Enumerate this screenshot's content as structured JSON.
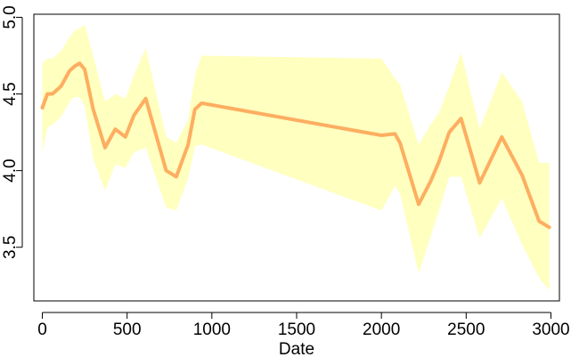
{
  "chart_data": {
    "type": "line",
    "title": "",
    "xlabel": "Date",
    "ylabel": "",
    "xlim": [
      -50,
      3050
    ],
    "ylim": [
      3.15,
      5.02
    ],
    "grid": false,
    "legend": "none",
    "x_ticks": [
      0,
      500,
      1000,
      1500,
      2000,
      2500,
      3000
    ],
    "x_tick_labels": [
      "0",
      "500",
      "1000",
      "1500",
      "2000",
      "2500",
      "3000"
    ],
    "y_ticks": [
      3.5,
      4.0,
      4.5,
      5.0
    ],
    "y_tick_labels": [
      "3.5",
      "4.0",
      "4.5",
      "5.0"
    ],
    "colors": {
      "line": "#fdae61",
      "band": "#ffffbf",
      "axis": "#000000"
    },
    "series": [
      {
        "x": [
          0,
          30,
          60,
          110,
          160,
          190,
          220,
          250,
          300,
          370,
          430,
          490,
          540,
          610,
          730,
          790,
          860,
          900,
          940,
          2000,
          2080,
          2110,
          2220,
          2290,
          2340,
          2400,
          2470,
          2580,
          2710,
          2830,
          2930,
          2990
        ],
        "y": [
          4.41,
          4.5,
          4.5,
          4.55,
          4.65,
          4.68,
          4.7,
          4.66,
          4.4,
          4.15,
          4.27,
          4.22,
          4.36,
          4.47,
          4.0,
          3.96,
          4.17,
          4.4,
          4.44,
          4.23,
          4.24,
          4.18,
          3.78,
          3.93,
          4.06,
          4.25,
          4.34,
          3.92,
          4.22,
          3.97,
          3.67,
          3.63
        ],
        "upper": [
          4.7,
          4.73,
          4.73,
          4.78,
          4.87,
          4.91,
          4.93,
          4.95,
          4.75,
          4.45,
          4.5,
          4.47,
          4.62,
          4.8,
          4.22,
          4.18,
          4.33,
          4.62,
          4.75,
          4.73,
          4.6,
          4.56,
          4.17,
          4.3,
          4.38,
          4.55,
          4.77,
          4.27,
          4.64,
          4.45,
          4.05,
          4.05
        ],
        "lower": [
          4.12,
          4.28,
          4.3,
          4.35,
          4.45,
          4.48,
          4.48,
          4.42,
          4.08,
          3.87,
          4.04,
          4.02,
          4.12,
          4.15,
          3.76,
          3.74,
          3.95,
          4.16,
          4.17,
          3.74,
          3.9,
          3.85,
          3.33,
          3.57,
          3.74,
          3.96,
          3.96,
          3.56,
          3.82,
          3.52,
          3.3,
          3.22
        ]
      }
    ]
  }
}
